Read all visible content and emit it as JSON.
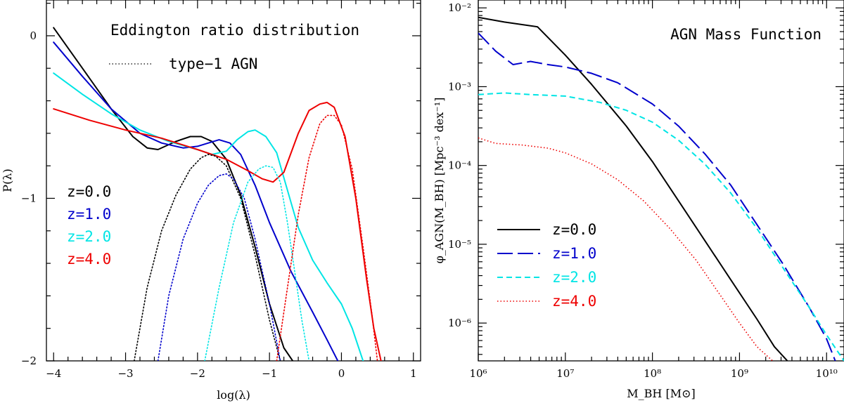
{
  "chart_data": [
    {
      "type": "line",
      "title": "Eddington ratio distribution",
      "legend_note": "type−1 AGN",
      "xlabel": "log(λ)",
      "ylabel": "P(λ)",
      "xlim": [
        -4.1,
        1.1
      ],
      "ylim": [
        -2.0,
        0.22
      ],
      "xticks": [
        -4,
        -3,
        -2,
        -1,
        0,
        1
      ],
      "xtick_labels": [
        "−4",
        "−3",
        "−2",
        "−1",
        "0",
        "1"
      ],
      "yticks": [
        -2,
        -1,
        0
      ],
      "ytick_labels": [
        "−2",
        "−1",
        "0"
      ],
      "legend_position": "left-middle",
      "series": [
        {
          "name": "z=0.0",
          "color": "#000000",
          "style": "solid",
          "x": [
            -4.0,
            -3.6,
            -3.2,
            -2.9,
            -2.7,
            -2.55,
            -2.3,
            -2.1,
            -1.95,
            -1.8,
            -1.6,
            -1.4,
            -1.2,
            -1.0,
            -0.8,
            -0.6
          ],
          "y": [
            0.05,
            -0.2,
            -0.45,
            -0.62,
            -0.69,
            -0.7,
            -0.65,
            -0.62,
            -0.62,
            -0.65,
            -0.76,
            -0.98,
            -1.3,
            -1.65,
            -1.92,
            -2.05
          ]
        },
        {
          "name": "z=1.0",
          "color": "#0000cc",
          "style": "solid",
          "x": [
            -4.0,
            -3.6,
            -3.2,
            -2.8,
            -2.5,
            -2.2,
            -2.0,
            -1.85,
            -1.7,
            -1.55,
            -1.4,
            -1.2,
            -1.0,
            -0.7,
            -0.4,
            -0.2,
            -0.05
          ],
          "y": [
            -0.04,
            -0.25,
            -0.45,
            -0.6,
            -0.66,
            -0.69,
            -0.68,
            -0.66,
            -0.64,
            -0.66,
            -0.73,
            -0.92,
            -1.15,
            -1.45,
            -1.7,
            -1.87,
            -2.0
          ]
        },
        {
          "name": "z=2.0",
          "color": "#00e5e5",
          "style": "solid",
          "x": [
            -4.0,
            -3.6,
            -3.2,
            -2.8,
            -2.4,
            -2.0,
            -1.8,
            -1.6,
            -1.45,
            -1.3,
            -1.2,
            -1.05,
            -0.9,
            -0.75,
            -0.6,
            -0.4,
            -0.2,
            0.0,
            0.15,
            0.3
          ],
          "y": [
            -0.23,
            -0.36,
            -0.48,
            -0.58,
            -0.65,
            -0.7,
            -0.73,
            -0.71,
            -0.64,
            -0.59,
            -0.58,
            -0.62,
            -0.72,
            -0.95,
            -1.18,
            -1.38,
            -1.52,
            -1.65,
            -1.8,
            -2.0
          ]
        },
        {
          "name": "z=4.0",
          "color": "#ee0000",
          "style": "solid",
          "x": [
            -4.0,
            -3.5,
            -3.0,
            -2.5,
            -2.0,
            -1.6,
            -1.3,
            -1.1,
            -0.95,
            -0.8,
            -0.6,
            -0.45,
            -0.3,
            -0.2,
            -0.1,
            0.05,
            0.2,
            0.35,
            0.45,
            0.55
          ],
          "y": [
            -0.45,
            -0.52,
            -0.58,
            -0.63,
            -0.7,
            -0.76,
            -0.83,
            -0.88,
            -0.9,
            -0.84,
            -0.6,
            -0.46,
            -0.42,
            -0.41,
            -0.44,
            -0.62,
            -1.0,
            -1.5,
            -1.8,
            -2.0
          ]
        },
        {
          "name": "z=0.0 type-1",
          "color": "#000000",
          "style": "dotted",
          "x": [
            -2.88,
            -2.7,
            -2.5,
            -2.3,
            -2.1,
            -1.95,
            -1.85,
            -1.75,
            -1.6,
            -1.4,
            -1.2,
            -1.0,
            -0.85
          ],
          "y": [
            -2.0,
            -1.55,
            -1.2,
            -0.98,
            -0.82,
            -0.75,
            -0.73,
            -0.74,
            -0.8,
            -1.0,
            -1.35,
            -1.75,
            -2.0
          ]
        },
        {
          "name": "z=1.0 type-1",
          "color": "#0000cc",
          "style": "dotted",
          "x": [
            -2.55,
            -2.4,
            -2.2,
            -2.0,
            -1.85,
            -1.7,
            -1.6,
            -1.5,
            -1.35,
            -1.2,
            -1.0,
            -0.85
          ],
          "y": [
            -2.0,
            -1.6,
            -1.25,
            -1.03,
            -0.92,
            -0.86,
            -0.85,
            -0.88,
            -1.0,
            -1.25,
            -1.65,
            -2.0
          ]
        },
        {
          "name": "z=2.0 type-1",
          "color": "#00e5e5",
          "style": "dotted",
          "x": [
            -1.9,
            -1.7,
            -1.5,
            -1.3,
            -1.15,
            -1.05,
            -0.95,
            -0.85,
            -0.75,
            -0.65,
            -0.55,
            -0.45
          ],
          "y": [
            -2.0,
            -1.55,
            -1.15,
            -0.9,
            -0.82,
            -0.8,
            -0.81,
            -0.9,
            -1.15,
            -1.45,
            -1.75,
            -2.0
          ]
        },
        {
          "name": "z=4.0 type-1",
          "color": "#ee0000",
          "style": "dotted",
          "x": [
            -0.9,
            -0.75,
            -0.6,
            -0.45,
            -0.3,
            -0.2,
            -0.1,
            0.0,
            0.15,
            0.3,
            0.42,
            0.5
          ],
          "y": [
            -2.0,
            -1.55,
            -1.1,
            -0.75,
            -0.54,
            -0.49,
            -0.49,
            -0.55,
            -0.82,
            -1.3,
            -1.7,
            -2.0
          ]
        }
      ]
    },
    {
      "type": "line",
      "title": "AGN Mass Function",
      "xlabel": "M_BH [M⊙]",
      "ylabel": "φ_AGN(M_BH) [Mpc⁻³ dex⁻¹]",
      "xscale": "log",
      "yscale": "log",
      "xlim_log10": [
        6,
        10.2
      ],
      "ylim_log10": [
        -6.48,
        -1.9
      ],
      "xticks_log10": [
        6,
        7,
        8,
        9,
        10
      ],
      "xtick_labels": [
        "10⁶",
        "10⁷",
        "10⁸",
        "10⁹",
        "10¹⁰"
      ],
      "yticks_log10": [
        -6,
        -5,
        -4,
        -3,
        -2
      ],
      "ytick_labels": [
        "10⁻⁶",
        "10⁻⁵",
        "10⁻⁴",
        "10⁻³",
        "10⁻²"
      ],
      "legend_position": "bottom-left",
      "series": [
        {
          "name": "z=0.0",
          "color": "#000000",
          "style": "solid",
          "log10_x": [
            6.0,
            6.3,
            6.68,
            7.0,
            7.3,
            7.7,
            8.0,
            8.3,
            8.6,
            8.9,
            9.2,
            9.4,
            9.55
          ],
          "log10_y": [
            -2.12,
            -2.18,
            -2.24,
            -2.6,
            -2.97,
            -3.5,
            -3.95,
            -4.45,
            -4.95,
            -5.45,
            -5.95,
            -6.3,
            -6.48
          ]
        },
        {
          "name": "z=1.0",
          "color": "#0000cc",
          "style": "long-dash",
          "log10_x": [
            6.0,
            6.2,
            6.4,
            6.6,
            6.8,
            7.0,
            7.3,
            7.6,
            8.0,
            8.3,
            8.6,
            8.9,
            9.2,
            9.5,
            9.8,
            10.0,
            10.1
          ],
          "log10_y": [
            -2.32,
            -2.55,
            -2.72,
            -2.68,
            -2.72,
            -2.75,
            -2.83,
            -2.95,
            -3.22,
            -3.5,
            -3.85,
            -4.25,
            -4.75,
            -5.25,
            -5.8,
            -6.2,
            -6.48
          ]
        },
        {
          "name": "z=2.0",
          "color": "#00e5e5",
          "style": "short-dash",
          "log10_x": [
            6.0,
            6.3,
            6.6,
            7.0,
            7.4,
            7.7,
            8.0,
            8.3,
            8.6,
            8.9,
            9.2,
            9.5,
            9.8,
            10.0,
            10.2
          ],
          "log10_y": [
            -3.1,
            -3.08,
            -3.1,
            -3.12,
            -3.2,
            -3.3,
            -3.45,
            -3.68,
            -3.98,
            -4.35,
            -4.8,
            -5.3,
            -5.8,
            -6.15,
            -6.48
          ]
        },
        {
          "name": "z=4.0",
          "color": "#ee0000",
          "style": "dotted",
          "log10_x": [
            6.0,
            6.2,
            6.5,
            6.8,
            7.0,
            7.3,
            7.6,
            7.9,
            8.2,
            8.5,
            8.8,
            9.0,
            9.2,
            9.38
          ],
          "log10_y": [
            -3.65,
            -3.72,
            -3.74,
            -3.78,
            -3.84,
            -3.98,
            -4.18,
            -4.45,
            -4.8,
            -5.2,
            -5.68,
            -6.0,
            -6.3,
            -6.48
          ]
        }
      ]
    }
  ]
}
